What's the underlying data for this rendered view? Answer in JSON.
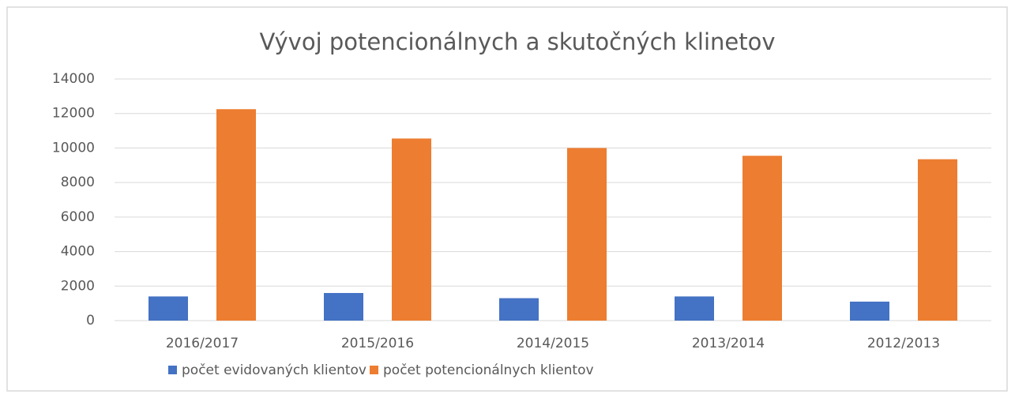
{
  "chart_data": {
    "type": "bar",
    "title": "Vývoj potencionálnych a skutočných klinetov",
    "categories": [
      "2016/2017",
      "2015/2016",
      "2014/2015",
      "2013/2014",
      "2012/2013"
    ],
    "series": [
      {
        "name": "počet evidovaných klientov",
        "color": "#4472c4",
        "values": [
          1400,
          1600,
          1300,
          1400,
          1100
        ]
      },
      {
        "name": "počet potencionálnych klientov",
        "color": "#ed7d31",
        "values": [
          12250,
          10550,
          10000,
          9550,
          9350
        ]
      }
    ],
    "ylim": [
      0,
      14000
    ],
    "yticks": [
      0,
      2000,
      4000,
      6000,
      8000,
      10000,
      12000,
      14000
    ],
    "grid": true,
    "legend": "bottom"
  }
}
